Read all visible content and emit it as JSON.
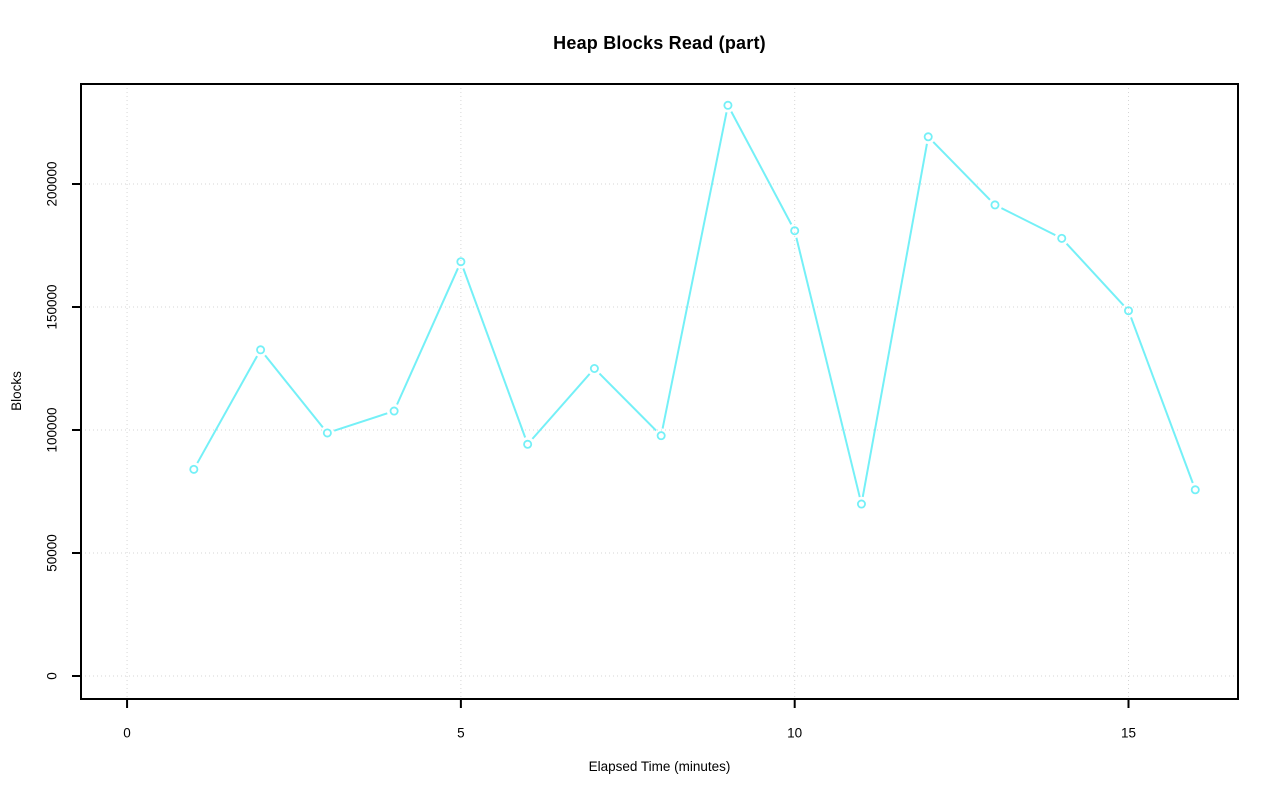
{
  "chart_data": {
    "type": "line",
    "title": "Heap Blocks Read (part)",
    "xlabel": "Elapsed Time (minutes)",
    "ylabel": "Blocks",
    "x": [
      1,
      2,
      3,
      4,
      5,
      6,
      7,
      8,
      9,
      10,
      11,
      12,
      13,
      14,
      15,
      16
    ],
    "values": [
      84000,
      132600,
      98800,
      107700,
      168400,
      94200,
      125000,
      97700,
      232000,
      181000,
      69900,
      219200,
      191500,
      177900,
      148500,
      75700
    ],
    "x_ticks": [
      0,
      5,
      10,
      15
    ],
    "x_tick_labels": [
      "0",
      "5",
      "10",
      "15"
    ],
    "y_ticks": [
      0,
      50000,
      100000,
      150000,
      200000
    ],
    "y_tick_labels": [
      "0",
      "50000",
      "100000",
      "150000",
      "200000"
    ],
    "xlim": [
      -0.69,
      16.64
    ],
    "ylim": [
      -9350,
      240650
    ],
    "grid": true,
    "legend_position": "none",
    "style": {
      "line_color": "#74F0F7",
      "marker": "open-circle",
      "marker_color": "#74F0F7",
      "grid_color": "#D6D6D6",
      "axis_color": "#000000",
      "text_color": "#000000",
      "background": "#FFFFFF"
    }
  }
}
